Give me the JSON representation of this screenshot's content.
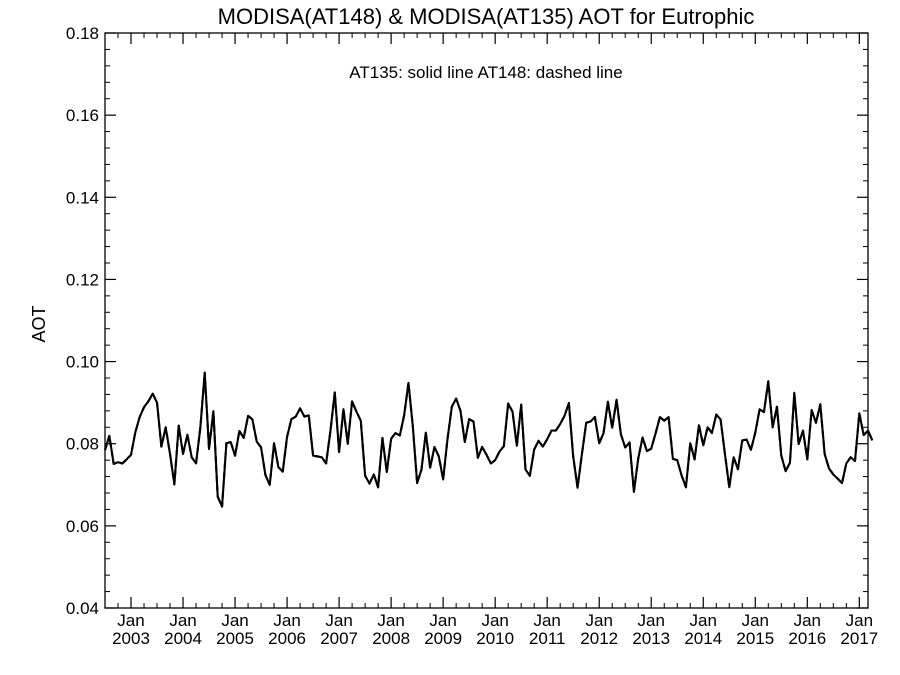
{
  "chart_data": {
    "type": "line",
    "title": "MODISA(AT148) & MODISA(AT135)  AOT for Eutrophic",
    "ylabel": "AOT",
    "xlabel": "",
    "annotation": "AT135: solid line   AT148: dashed line",
    "ylim": [
      0.04,
      0.18
    ],
    "xlim": [
      "2002-07",
      "2017-03"
    ],
    "yticks": [
      "0.04",
      "0.06",
      "0.08",
      "0.10",
      "0.12",
      "0.14",
      "0.16",
      "0.18"
    ],
    "xtick_top_labels": [
      "Jan",
      "Jan",
      "Jan",
      "Jan",
      "Jan",
      "Jan",
      "Jan",
      "Jan",
      "Jan",
      "Jan",
      "Jan",
      "Jan",
      "Jan",
      "Jan",
      "Jan"
    ],
    "xtick_bottom_labels": [
      "2003",
      "2004",
      "2005",
      "2006",
      "2007",
      "2008",
      "2009",
      "2010",
      "2011",
      "2012",
      "2013",
      "2014",
      "2015",
      "2016",
      "2017"
    ],
    "xtick_dates": [
      "2003-01",
      "2004-01",
      "2005-01",
      "2006-01",
      "2007-01",
      "2008-01",
      "2009-01",
      "2010-01",
      "2011-01",
      "2012-01",
      "2013-01",
      "2014-01",
      "2015-01",
      "2016-01",
      "2017-01"
    ],
    "grid": false,
    "series": [
      {
        "name": "AT135",
        "style": "solid",
        "color": "#000000",
        "start": "2002-07",
        "values": [
          0.0785,
          0.0819,
          0.0751,
          0.0755,
          0.0752,
          0.0762,
          0.0773,
          0.0828,
          0.0865,
          0.0889,
          0.0903,
          0.0922,
          0.09,
          0.0793,
          0.084,
          0.0775,
          0.0701,
          0.0844,
          0.0775,
          0.0822,
          0.0767,
          0.0752,
          0.084,
          0.0973,
          0.0787,
          0.0879,
          0.0671,
          0.0647,
          0.0801,
          0.0804,
          0.0771,
          0.0831,
          0.0814,
          0.0868,
          0.0859,
          0.0805,
          0.0791,
          0.0724,
          0.07,
          0.0801,
          0.0743,
          0.0732,
          0.0817,
          0.086,
          0.0866,
          0.0886,
          0.0866,
          0.0869,
          0.0771,
          0.0769,
          0.0767,
          0.0752,
          0.0831,
          0.0925,
          0.078,
          0.0884,
          0.08,
          0.0903,
          0.0878,
          0.0856,
          0.0722,
          0.0703,
          0.0725,
          0.0694,
          0.0814,
          0.0731,
          0.0812,
          0.0826,
          0.082,
          0.0869,
          0.0948,
          0.0843,
          0.0704,
          0.0737,
          0.0827,
          0.0742,
          0.0792,
          0.0769,
          0.0713,
          0.0811,
          0.089,
          0.091,
          0.088,
          0.0804,
          0.086,
          0.0854,
          0.0766,
          0.0792,
          0.0773,
          0.0752,
          0.076,
          0.0781,
          0.0794,
          0.0898,
          0.0878,
          0.0795,
          0.0895,
          0.0737,
          0.0722,
          0.0786,
          0.0807,
          0.0793,
          0.0811,
          0.0832,
          0.0832,
          0.0848,
          0.0868,
          0.0899,
          0.0769,
          0.0693,
          0.0774,
          0.0851,
          0.0854,
          0.0865,
          0.0801,
          0.0826,
          0.0902,
          0.0839,
          0.0907,
          0.0823,
          0.0791,
          0.0803,
          0.0683,
          0.0764,
          0.0815,
          0.0782,
          0.0788,
          0.0825,
          0.0865,
          0.0856,
          0.0865,
          0.0763,
          0.076,
          0.0723,
          0.0694,
          0.0801,
          0.0762,
          0.0845,
          0.0796,
          0.084,
          0.0826,
          0.0871,
          0.0859,
          0.0775,
          0.0694,
          0.0767,
          0.0738,
          0.0808,
          0.081,
          0.0785,
          0.0827,
          0.0884,
          0.0877,
          0.0952,
          0.084,
          0.089,
          0.0771,
          0.0733,
          0.0754,
          0.0924,
          0.0799,
          0.0832,
          0.0762,
          0.0882,
          0.0851,
          0.0896,
          0.0775,
          0.074,
          0.0725,
          0.0715,
          0.0704,
          0.0752,
          0.0767,
          0.0758,
          0.0874,
          0.0821,
          0.0832,
          0.0808
        ]
      },
      {
        "name": "AT148",
        "style": "dashed",
        "color": "#000000",
        "start": "2002-07",
        "values": [
          0.0785,
          0.0819,
          0.0751,
          0.0755,
          0.0752,
          0.0762,
          0.0773,
          0.0828,
          0.0865,
          0.0889,
          0.0903,
          0.0922,
          0.09,
          0.0793,
          0.084,
          0.0775,
          0.0701,
          0.0844,
          0.0775,
          0.0822,
          0.0767,
          0.0752,
          0.084,
          0.0973,
          0.0787,
          0.0879,
          0.0671,
          0.0647,
          0.0801,
          0.0804,
          0.0771,
          0.0831,
          0.0814,
          0.0868,
          0.0859,
          0.0805,
          0.0791,
          0.0724,
          0.07,
          0.0801,
          0.0743,
          0.0732,
          0.0817,
          0.086,
          0.0866,
          0.0886,
          0.0866,
          0.0869,
          0.0771,
          0.0769,
          0.0767,
          0.0752,
          0.0831,
          0.0925,
          0.078,
          0.0884,
          0.08,
          0.0903,
          0.0878,
          0.0856,
          0.0722,
          0.0703,
          0.0725,
          0.0694,
          0.0814,
          0.0731,
          0.0812,
          0.0826,
          0.082,
          0.0869,
          0.0948,
          0.0843,
          0.0704,
          0.0737,
          0.0827,
          0.0742,
          0.0792,
          0.0769,
          0.0713,
          0.0811,
          0.089,
          0.091,
          0.088,
          0.0804,
          0.086,
          0.0854,
          0.0766,
          0.0792,
          0.0773,
          0.0752,
          0.076,
          0.0781,
          0.0794,
          0.0898,
          0.0878,
          0.0795,
          0.0895,
          0.0737,
          0.0722,
          0.0786,
          0.0807,
          0.0793,
          0.0811,
          0.0832,
          0.0832,
          0.0848,
          0.0868,
          0.0899,
          0.0769,
          0.0693,
          0.0774,
          0.0851,
          0.0854,
          0.0865,
          0.0801,
          0.0826,
          0.0902,
          0.0839,
          0.0907,
          0.0823,
          0.0791,
          0.0803,
          0.0683,
          0.0764,
          0.0815,
          0.0782,
          0.0788,
          0.0825,
          0.0865,
          0.0856,
          0.0865,
          0.0763,
          0.076,
          0.0723,
          0.0694,
          0.0801,
          0.0762,
          0.0845,
          0.0796,
          0.084,
          0.0826,
          0.0871,
          0.0859,
          0.0775,
          0.0694,
          0.0767,
          0.0738,
          0.0808,
          0.081,
          0.0785,
          0.0827,
          0.0884,
          0.0877,
          0.0952,
          0.084,
          0.089,
          0.0771,
          0.0733,
          0.0754,
          0.0924,
          0.0799,
          0.0832,
          0.0762,
          0.0882,
          0.0851,
          0.0896,
          0.0775,
          0.074,
          0.0725,
          0.0715,
          0.0704,
          0.0752,
          0.0767,
          0.0758,
          0.0874,
          0.0821,
          0.0832,
          0.0808
        ]
      }
    ]
  }
}
